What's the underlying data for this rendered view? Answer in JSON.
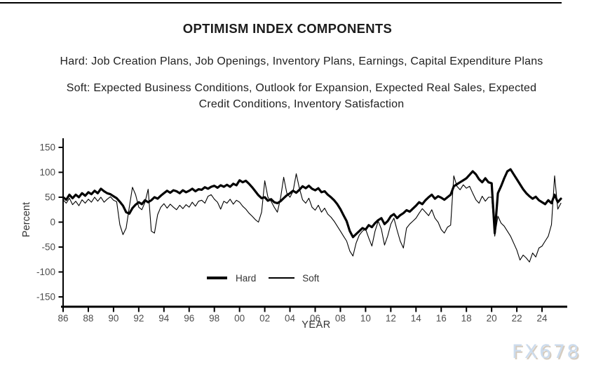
{
  "header": {
    "title": "OPTIMISM INDEX COMPONENTS",
    "hard_line": "Hard: Job Creation Plans, Job Openings, Inventory Plans, Earnings, Capital Expenditure Plans",
    "soft_line1": "Soft: Expected Business Conditions, Outlook for Expansion, Expected Real Sales, Expected",
    "soft_line2": "Credit Conditions, Inventory Satisfaction"
  },
  "page": {
    "watermark": "FX678",
    "watermark_color": "#ccdcee",
    "watermark_shadow_color": "#d5ccc0",
    "top_rule_color": "#000000"
  },
  "chart_data": {
    "type": "line",
    "title": "OPTIMISM INDEX COMPONENTS",
    "xlabel": "YEAR",
    "ylabel": "Percent",
    "xlim": [
      1986,
      2026
    ],
    "ylim": [
      -170,
      168
    ],
    "grid": false,
    "legend_position": "inside-bottom-center",
    "line_color": "#000000",
    "tick_label_color": "#4d4d4d",
    "axis_title_color": "#333333",
    "y_ticks": [
      150,
      100,
      50,
      0,
      -50,
      -100,
      -150
    ],
    "x_ticks": [
      {
        "v": 1986,
        "label": "86"
      },
      {
        "v": 1988,
        "label": "88"
      },
      {
        "v": 1990,
        "label": "90"
      },
      {
        "v": 1992,
        "label": "92"
      },
      {
        "v": 1994,
        "label": "94"
      },
      {
        "v": 1996,
        "label": "96"
      },
      {
        "v": 1998,
        "label": "98"
      },
      {
        "v": 2000,
        "label": "00"
      },
      {
        "v": 2002,
        "label": "02"
      },
      {
        "v": 2004,
        "label": "04"
      },
      {
        "v": 2006,
        "label": "06"
      },
      {
        "v": 2008,
        "label": "08"
      },
      {
        "v": 2010,
        "label": "10"
      },
      {
        "v": 2012,
        "label": "12"
      },
      {
        "v": 2014,
        "label": "14"
      },
      {
        "v": 2016,
        "label": "16"
      },
      {
        "v": 2018,
        "label": "18"
      },
      {
        "v": 2020,
        "label": "20"
      },
      {
        "v": 2022,
        "label": "22"
      },
      {
        "v": 2024,
        "label": "24"
      }
    ],
    "x_start": 1986.0,
    "x_step": 0.25,
    "series": [
      {
        "name": "Hard",
        "stroke_width": 3.2,
        "values": [
          50,
          45,
          55,
          48,
          55,
          50,
          58,
          53,
          60,
          56,
          63,
          58,
          67,
          62,
          58,
          56,
          52,
          48,
          41,
          33,
          20,
          17,
          28,
          35,
          40,
          36,
          44,
          40,
          44,
          50,
          47,
          53,
          58,
          63,
          59,
          64,
          62,
          58,
          64,
          60,
          63,
          67,
          62,
          66,
          65,
          70,
          67,
          71,
          73,
          69,
          74,
          71,
          75,
          71,
          77,
          74,
          84,
          80,
          83,
          77,
          70,
          62,
          54,
          48,
          50,
          43,
          46,
          40,
          38,
          42,
          48,
          54,
          58,
          63,
          59,
          65,
          72,
          68,
          73,
          67,
          64,
          68,
          60,
          62,
          55,
          50,
          44,
          36,
          26,
          14,
          2,
          -18,
          -30,
          -24,
          -18,
          -12,
          -15,
          -6,
          -10,
          -2,
          4,
          8,
          -4,
          2,
          12,
          16,
          8,
          14,
          18,
          24,
          21,
          27,
          33,
          40,
          36,
          44,
          50,
          55,
          47,
          52,
          49,
          45,
          50,
          55,
          72,
          76,
          80,
          84,
          88,
          95,
          102,
          96,
          86,
          80,
          88,
          80,
          78,
          -22,
          58,
          72,
          88,
          102,
          106,
          96,
          86,
          76,
          66,
          58,
          52,
          47,
          51,
          44,
          40,
          36,
          44,
          38,
          55,
          40,
          47
        ]
      },
      {
        "name": "Soft",
        "stroke_width": 1.1,
        "values": [
          45,
          38,
          48,
          35,
          42,
          33,
          45,
          38,
          46,
          40,
          50,
          42,
          50,
          40,
          46,
          51,
          44,
          41,
          -5,
          -25,
          -12,
          30,
          70,
          55,
          30,
          25,
          40,
          66,
          -18,
          -22,
          15,
          30,
          37,
          28,
          36,
          30,
          25,
          34,
          27,
          35,
          30,
          40,
          32,
          42,
          44,
          38,
          52,
          55,
          46,
          40,
          26,
          42,
          38,
          46,
          36,
          44,
          40,
          32,
          26,
          18,
          12,
          5,
          0,
          20,
          83,
          50,
          42,
          30,
          20,
          48,
          90,
          58,
          50,
          62,
          97,
          68,
          45,
          38,
          48,
          30,
          24,
          34,
          20,
          28,
          16,
          10,
          2,
          -8,
          -18,
          -28,
          -38,
          -58,
          -68,
          -42,
          -26,
          -18,
          -14,
          -32,
          -48,
          -18,
          2,
          -14,
          -46,
          -28,
          -4,
          8,
          -16,
          -38,
          -52,
          -12,
          -4,
          2,
          8,
          18,
          27,
          20,
          13,
          25,
          8,
          0,
          -15,
          -22,
          -10,
          -6,
          93,
          72,
          65,
          75,
          68,
          72,
          58,
          45,
          38,
          52,
          42,
          50,
          50,
          -28,
          12,
          -2,
          -8,
          -18,
          -28,
          -42,
          -56,
          -76,
          -66,
          -72,
          -80,
          -62,
          -70,
          -52,
          -48,
          -38,
          -28,
          -5,
          93,
          26,
          38
        ]
      }
    ]
  }
}
